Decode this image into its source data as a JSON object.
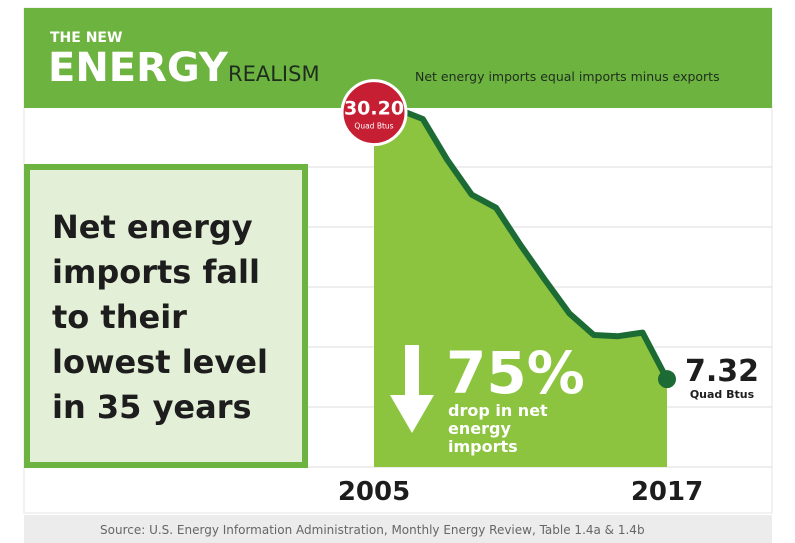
{
  "chart_data": {
    "type": "area",
    "kicker": "THE NEW",
    "title": "ENERGY",
    "title_suffix": "REALISM",
    "subtitle": "Net energy imports equal imports minus exports",
    "headline": "Net energy imports fall to their lowest level in 35 years",
    "x": [
      2005,
      2006,
      2007,
      2008,
      2009,
      2010,
      2011,
      2012,
      2013,
      2014,
      2015,
      2016,
      2017
    ],
    "values": [
      30.2,
      29.8,
      29.0,
      25.6,
      22.7,
      21.6,
      18.5,
      15.6,
      12.8,
      11.0,
      10.9,
      11.2,
      7.32
    ],
    "value_labels": [
      "30.20",
      null,
      null,
      null,
      null,
      null,
      null,
      null,
      null,
      null,
      null,
      null,
      "7.32"
    ],
    "value_unit": "Quad Btus",
    "change": {
      "value": 75,
      "label": "75%",
      "text": "drop in net energy imports"
    },
    "xlim": [
      2005,
      2017
    ],
    "xticks": [
      2005,
      2017
    ],
    "ylim": [
      0,
      30
    ],
    "yticks": [
      5,
      10,
      15,
      20,
      25
    ],
    "grid": true,
    "color": "#8cc43f",
    "line_color": "#1c6a34",
    "start_color": "#c61f33",
    "source": "Source: U.S. Energy Information Administration, Monthly Energy Review, Table 1.4a & 1.4b"
  }
}
